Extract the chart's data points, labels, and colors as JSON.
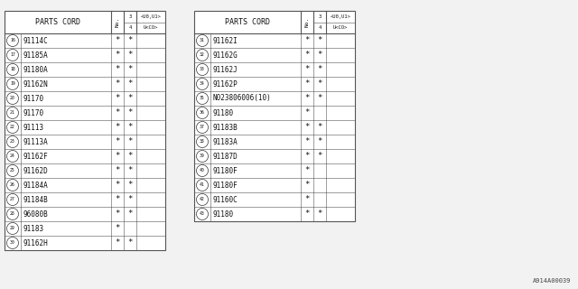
{
  "bg_color": "#f2f2f2",
  "font_color": "#111111",
  "watermark": "A914A00039",
  "left_rows": [
    [
      "16",
      "91114C",
      "*",
      "*"
    ],
    [
      "17",
      "91185A",
      "*",
      "*"
    ],
    [
      "18",
      "91180A",
      "*",
      "*"
    ],
    [
      "19",
      "91162N",
      "*",
      "*"
    ],
    [
      "20",
      "91170",
      "*",
      "*"
    ],
    [
      "21",
      "91170",
      "*",
      "*"
    ],
    [
      "22",
      "91113",
      "*",
      "*"
    ],
    [
      "23",
      "91113A",
      "*",
      "*"
    ],
    [
      "24",
      "91162F",
      "*",
      "*"
    ],
    [
      "25",
      "91162D",
      "*",
      "*"
    ],
    [
      "26",
      "91184A",
      "*",
      "*"
    ],
    [
      "27",
      "91184B",
      "*",
      "*"
    ],
    [
      "28",
      "96080B",
      "*",
      "*"
    ],
    [
      "29",
      "91183",
      "*",
      ""
    ],
    [
      "30",
      "91162H",
      "*",
      "*"
    ]
  ],
  "right_rows": [
    [
      "31",
      "91162I",
      "*",
      "*"
    ],
    [
      "32",
      "91162G",
      "*",
      "*"
    ],
    [
      "33",
      "91162J",
      "*",
      "*"
    ],
    [
      "34",
      "91162P",
      "*",
      "*"
    ],
    [
      "35",
      "N023806006(10)",
      "*",
      "*"
    ],
    [
      "36",
      "91180",
      "*",
      ""
    ],
    [
      "37",
      "91183B",
      "*",
      "*"
    ],
    [
      "38",
      "91183A",
      "*",
      "*"
    ],
    [
      "39",
      "91187D",
      "*",
      "*"
    ],
    [
      "40",
      "91180F",
      "*",
      ""
    ],
    [
      "41",
      "91180F",
      "*",
      ""
    ],
    [
      "42",
      "91160C",
      "*",
      ""
    ],
    [
      "43",
      "91180",
      "*",
      "*"
    ]
  ]
}
